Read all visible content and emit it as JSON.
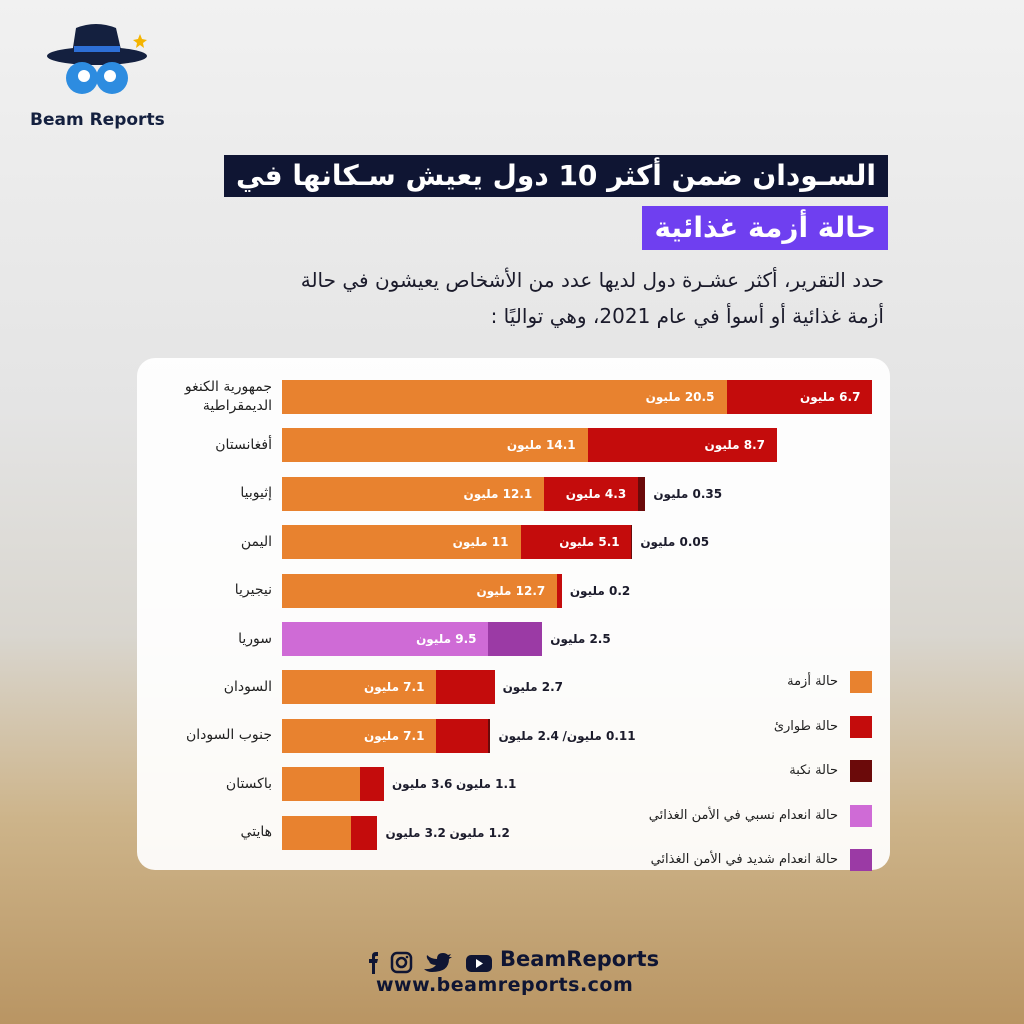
{
  "header": {
    "logo_text": "Beam Reports",
    "title_line1": "السـودان ضمن أكثر 10 دول يعيش سـكانها في",
    "title_line2": "حالة أزمة غذائية",
    "subtitle_lines": [
      "حدد التقرير، أكثر عشـرة دول لديها عدد من الأشخاص يعيشون في حالة",
      "أزمة غذائية أو أسوأ في عام 2021، وهي تواليًا :"
    ]
  },
  "chart_data": {
    "type": "bar",
    "orientation": "horizontal",
    "stacked": true,
    "legend_position": "right",
    "categories": [
      "جمهورية الكنغو الديمقراطية",
      "أفغانستان",
      "إثيوبيا",
      "اليمن",
      "نيجيريا",
      "سوريا",
      "السودان",
      "جنوب السودان",
      "باكستان",
      "هايتي"
    ],
    "series": [
      {
        "name": "حالة أزمة",
        "color": "#e8822f",
        "values": [
          20.5,
          14.1,
          12.1,
          11,
          12.7,
          null,
          7.1,
          7.1,
          3.6,
          3.2
        ],
        "value_labels": [
          "20.5 مليون",
          "14.1 مليون",
          "12.1 مليون",
          "11 مليون",
          "12.7 مليون",
          null,
          "7.1 مليون",
          "7.1 مليون",
          "3.6 مليون",
          "3.2 مليون"
        ]
      },
      {
        "name": "حالة طوارئ",
        "color": "#c40c0c",
        "values": [
          6.7,
          8.7,
          4.3,
          5.1,
          0.2,
          null,
          2.7,
          2.4,
          1.1,
          1.2
        ],
        "value_labels": [
          "6.7 مليون",
          "8.7 مليون",
          "4.3 مليون",
          "5.1 مليون",
          "0.2 مليون",
          null,
          "2.7 مليون",
          "2.4 مليون",
          "1.1 مليون",
          "1.2 مليون"
        ]
      },
      {
        "name": "حالة نكبة",
        "color": "#6b0a0a",
        "values": [
          null,
          null,
          0.35,
          0.05,
          null,
          null,
          null,
          0.11,
          null,
          null
        ],
        "value_labels": [
          null,
          null,
          "0.35 مليون",
          "0.05 مليون",
          null,
          null,
          null,
          "0.11 مليون/",
          null,
          null
        ]
      },
      {
        "name": "حالة انعدام نسبي في الأمن الغذائي",
        "color": "#cf6bd6",
        "values": [
          null,
          null,
          null,
          null,
          null,
          9.5,
          null,
          null,
          null,
          null
        ],
        "value_labels": [
          null,
          null,
          null,
          null,
          null,
          "9.5 مليون",
          null,
          null,
          null,
          null
        ]
      },
      {
        "name": "حالة انعدام شديد في الأمن الغذائي",
        "color": "#9b3aa5",
        "values": [
          null,
          null,
          null,
          null,
          null,
          2.5,
          null,
          null,
          null,
          null
        ],
        "value_labels": [
          null,
          null,
          null,
          null,
          null,
          "2.5 مليون",
          null,
          null,
          null,
          null
        ]
      }
    ]
  },
  "footer": {
    "handle": "BeamReports",
    "website": "www.beamreports.com"
  }
}
